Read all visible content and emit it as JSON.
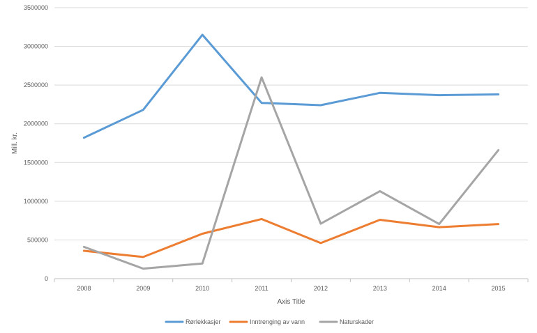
{
  "chart_data": {
    "type": "line",
    "title": "",
    "xlabel": "Axis Title",
    "ylabel": "Mill. kr.",
    "ylim": [
      0,
      3500000
    ],
    "yticks": [
      0,
      500000,
      1000000,
      1500000,
      2000000,
      2500000,
      3000000,
      3500000
    ],
    "categories": [
      "2008",
      "2009",
      "2010",
      "2011",
      "2012",
      "2013",
      "2014",
      "2015"
    ],
    "grid": true,
    "legend_position": "bottom",
    "series": [
      {
        "name": "Rørlekkasjer",
        "color": "#5B9BD5",
        "values": [
          1820000,
          2180000,
          3150000,
          2270000,
          2240000,
          2400000,
          2370000,
          2380000
        ]
      },
      {
        "name": "Inntrenging av vann",
        "color": "#ED7D31",
        "values": [
          360000,
          280000,
          580000,
          770000,
          460000,
          760000,
          665000,
          705000
        ]
      },
      {
        "name": "Naturskader",
        "color": "#A5A5A5",
        "values": [
          410000,
          130000,
          195000,
          2600000,
          710000,
          1130000,
          705000,
          1660000
        ]
      }
    ]
  }
}
